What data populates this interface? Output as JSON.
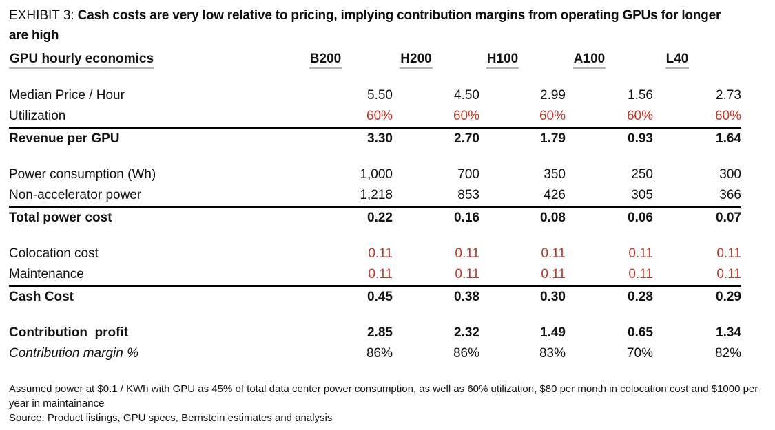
{
  "title": {
    "prefix": "EXHIBIT 3:",
    "text": "Cash costs are very low relative to pricing, implying contribution margins from operating GPUs for longer are high"
  },
  "colors": {
    "highlight_red": "#c0392b",
    "rule_black": "#000000",
    "header_underline_gray": "#b3b3b3"
  },
  "table": {
    "header_label": "GPU hourly economics",
    "columns": [
      "B200",
      "H200",
      "H100",
      "A100",
      "L40"
    ],
    "rows": [
      {
        "label": "Median Price / Hour",
        "values": [
          "5.50",
          "4.50",
          "2.99",
          "1.56",
          "2.73"
        ],
        "bold": false,
        "red_values": false,
        "italic_label": false,
        "rule_above": false,
        "gap_above": true
      },
      {
        "label": "Utilization",
        "values": [
          "60%",
          "60%",
          "60%",
          "60%",
          "60%"
        ],
        "bold": false,
        "red_values": true,
        "italic_label": false,
        "rule_above": false,
        "gap_above": false
      },
      {
        "label": "Revenue per GPU",
        "values": [
          "3.30",
          "2.70",
          "1.79",
          "0.93",
          "1.64"
        ],
        "bold": true,
        "red_values": false,
        "italic_label": false,
        "rule_above": true,
        "gap_above": false
      },
      {
        "label": "Power consumption (Wh)",
        "values": [
          "1,000",
          "700",
          "350",
          "250",
          "300"
        ],
        "bold": false,
        "red_values": false,
        "italic_label": false,
        "rule_above": false,
        "gap_above": true
      },
      {
        "label": "Non-accelerator power",
        "values": [
          "1,218",
          "853",
          "426",
          "305",
          "366"
        ],
        "bold": false,
        "red_values": false,
        "italic_label": false,
        "rule_above": false,
        "gap_above": false
      },
      {
        "label": "Total power cost",
        "values": [
          "0.22",
          "0.16",
          "0.08",
          "0.06",
          "0.07"
        ],
        "bold": true,
        "red_values": false,
        "italic_label": false,
        "rule_above": true,
        "gap_above": false
      },
      {
        "label": "Colocation cost",
        "values": [
          "0.11",
          "0.11",
          "0.11",
          "0.11",
          "0.11"
        ],
        "bold": false,
        "red_values": true,
        "italic_label": false,
        "rule_above": false,
        "gap_above": true
      },
      {
        "label": "Maintenance",
        "values": [
          "0.11",
          "0.11",
          "0.11",
          "0.11",
          "0.11"
        ],
        "bold": false,
        "red_values": true,
        "italic_label": false,
        "rule_above": false,
        "gap_above": false
      },
      {
        "label": "Cash Cost",
        "values": [
          "0.45",
          "0.38",
          "0.30",
          "0.28",
          "0.29"
        ],
        "bold": true,
        "red_values": false,
        "italic_label": false,
        "rule_above": true,
        "gap_above": false
      },
      {
        "label": "Contribution  profit",
        "values": [
          "2.85",
          "2.32",
          "1.49",
          "0.65",
          "1.34"
        ],
        "bold": true,
        "red_values": false,
        "italic_label": false,
        "rule_above": false,
        "gap_above": true
      },
      {
        "label": "Contribution margin %",
        "values": [
          "86%",
          "86%",
          "83%",
          "70%",
          "82%"
        ],
        "bold": false,
        "red_values": false,
        "italic_label": true,
        "rule_above": false,
        "gap_above": false
      }
    ]
  },
  "footnotes": [
    "Assumed power at $0.1 / KWh with GPU as 45% of total data center power consumption, as well as 60% utilization, $80 per month in colocation cost and $1000 per year in maintainance",
    "Source: Product listings, GPU specs, Bernstein estimates and analysis"
  ]
}
